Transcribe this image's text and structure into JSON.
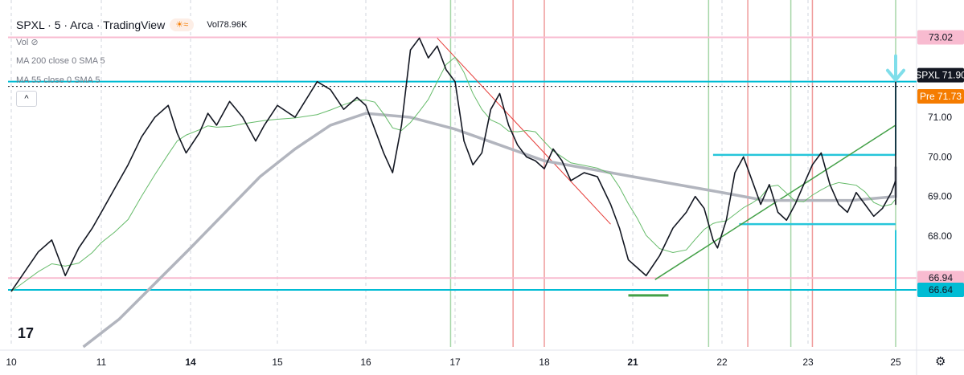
{
  "header": {
    "symbol_line": "SPXL · 5 · Arca · TradingView",
    "session_icon": "sun-icon",
    "waves_icon": "waves-icon",
    "vol_label": "Vol",
    "vol_value": "78.96K",
    "vol_indicator": "Vol",
    "eye_icon": "eye-off-icon"
  },
  "studies": {
    "ma200": "MA 200 close 0 SMA 5",
    "ma55": "MA 55 close 0 SMA 5"
  },
  "collapse_glyph": "^",
  "price_labels": [
    {
      "text": "73.02",
      "value": 73.02,
      "bg": "#f8bbd0"
    },
    {
      "text": "SPXL 71.90",
      "value": 71.9,
      "bg": "#131722",
      "color": "#ffffff"
    },
    {
      "text": "Pre 71.73",
      "value": 71.73,
      "bg": "#f57c00",
      "color": "#ffffff"
    },
    {
      "text": "66.94",
      "value": 66.94,
      "bg": "#f8bbd0"
    },
    {
      "text": "66.64",
      "value": 66.64,
      "bg": "#00bcd4"
    }
  ],
  "chart_data": {
    "type": "line",
    "symbol": "SPXL",
    "interval": "5",
    "exchange": "Arca",
    "y_ticks": [
      68.0,
      69.0,
      70.0,
      71.0
    ],
    "ylim": [
      65.2,
      73.8
    ],
    "x_labels": [
      "10",
      "11",
      "14",
      "15",
      "16",
      "17",
      "18",
      "21",
      "22",
      "23",
      "25"
    ],
    "x_label_bold": [
      "14",
      "21"
    ],
    "grid": "dashed vertical at day boundaries",
    "series": [
      {
        "name": "SPXL",
        "color": "#131722",
        "values": [
          [
            10.0,
            66.6
          ],
          [
            10.15,
            67.1
          ],
          [
            10.3,
            67.6
          ],
          [
            10.45,
            67.9
          ],
          [
            10.6,
            67.0
          ],
          [
            10.75,
            67.7
          ],
          [
            10.9,
            68.2
          ],
          [
            11.0,
            68.6
          ],
          [
            11.15,
            69.2
          ],
          [
            11.3,
            69.8
          ],
          [
            11.45,
            70.5
          ],
          [
            11.6,
            71.0
          ],
          [
            11.75,
            71.3
          ],
          [
            11.85,
            70.6
          ],
          [
            11.95,
            70.1
          ],
          [
            12.1,
            70.6
          ],
          [
            12.2,
            71.1
          ],
          [
            12.3,
            70.8
          ],
          [
            12.45,
            71.4
          ],
          [
            12.6,
            71.0
          ],
          [
            12.75,
            70.4
          ],
          [
            12.85,
            70.8
          ],
          [
            13.0,
            71.3
          ],
          [
            13.2,
            71.0
          ],
          [
            13.45,
            71.9
          ],
          [
            13.6,
            71.7
          ],
          [
            13.75,
            71.2
          ],
          [
            13.9,
            71.5
          ],
          [
            14.0,
            71.3
          ],
          [
            14.1,
            70.7
          ],
          [
            14.2,
            70.1
          ],
          [
            14.3,
            69.6
          ],
          [
            14.4,
            70.8
          ],
          [
            14.5,
            72.7
          ],
          [
            14.6,
            73.0
          ],
          [
            14.7,
            72.5
          ],
          [
            14.8,
            72.8
          ],
          [
            14.9,
            72.2
          ],
          [
            15.0,
            71.9
          ],
          [
            15.1,
            70.4
          ],
          [
            15.2,
            69.8
          ],
          [
            15.3,
            70.1
          ],
          [
            15.4,
            71.2
          ],
          [
            15.5,
            71.6
          ],
          [
            15.6,
            70.8
          ],
          [
            15.7,
            70.3
          ],
          [
            15.8,
            70.0
          ],
          [
            15.9,
            69.9
          ],
          [
            16.0,
            69.7
          ],
          [
            16.1,
            70.2
          ],
          [
            16.2,
            69.9
          ],
          [
            16.3,
            69.4
          ],
          [
            16.45,
            69.6
          ],
          [
            16.6,
            69.5
          ],
          [
            16.75,
            68.8
          ],
          [
            16.85,
            68.2
          ],
          [
            16.95,
            67.4
          ],
          [
            17.05,
            67.2
          ],
          [
            17.15,
            67.0
          ],
          [
            17.3,
            67.5
          ],
          [
            17.45,
            68.2
          ],
          [
            17.6,
            68.6
          ],
          [
            17.7,
            69.0
          ],
          [
            17.8,
            68.7
          ],
          [
            17.9,
            67.9
          ],
          [
            17.95,
            67.7
          ],
          [
            18.05,
            68.4
          ],
          [
            18.15,
            69.6
          ],
          [
            18.25,
            70.0
          ],
          [
            18.35,
            69.4
          ],
          [
            18.45,
            68.8
          ],
          [
            18.55,
            69.3
          ],
          [
            18.65,
            68.6
          ],
          [
            18.75,
            68.4
          ],
          [
            18.85,
            68.8
          ],
          [
            18.95,
            69.3
          ],
          [
            19.05,
            69.8
          ],
          [
            19.15,
            70.1
          ],
          [
            19.25,
            69.3
          ],
          [
            19.35,
            68.8
          ],
          [
            19.45,
            68.6
          ],
          [
            19.55,
            69.1
          ],
          [
            19.65,
            68.8
          ],
          [
            19.75,
            68.5
          ],
          [
            19.85,
            68.7
          ],
          [
            19.95,
            69.1
          ],
          [
            20.05,
            69.4
          ],
          [
            20.15,
            69.0
          ],
          [
            20.25,
            69.2
          ],
          [
            20.4,
            68.8
          ],
          [
            20.55,
            68.9
          ],
          [
            20.7,
            69.3
          ],
          [
            20.85,
            69.5
          ],
          [
            20.95,
            69.0
          ],
          [
            21.05,
            69.2
          ],
          [
            21.15,
            69.8
          ],
          [
            21.25,
            70.3
          ],
          [
            21.35,
            70.8
          ],
          [
            21.45,
            70.5
          ],
          [
            21.55,
            70.8
          ],
          [
            21.65,
            71.0
          ],
          [
            21.75,
            71.4
          ],
          [
            21.85,
            71.6
          ],
          [
            21.95,
            71.9
          ]
        ]
      },
      {
        "name": "MA 55",
        "color": "#4caf50"
      },
      {
        "name": "MA 200",
        "color": "#b2b5be"
      }
    ],
    "annotations": {
      "horizontal_lines": [
        {
          "y": 73.02,
          "color": "#f8bbd0",
          "kind": "level"
        },
        {
          "y": 71.9,
          "color": "#00bcd4",
          "kind": "level"
        },
        {
          "y": 66.94,
          "color": "#f8bbd0",
          "kind": "level"
        },
        {
          "y": 66.64,
          "color": "#00bcd4",
          "kind": "level"
        },
        {
          "y": 70.05,
          "color": "#26c6da",
          "kind": "range-top"
        },
        {
          "y": 68.3,
          "color": "#26c6da",
          "kind": "range-bottom"
        }
      ],
      "vertical_lines_red": [
        15.65,
        16.0,
        18.3,
        19.05
      ],
      "vertical_lines_green": [
        14.95,
        17.85,
        18.8,
        21.1
      ],
      "trendline_green_from": [
        17.25,
        66.9
      ],
      "trendline_green_to": [
        22.35,
        70.8
      ],
      "downtrend_red_from": [
        14.8,
        73.0
      ],
      "downtrend_red_to": [
        16.75,
        68.3
      ],
      "arrow_down_at": 21.05
    }
  }
}
